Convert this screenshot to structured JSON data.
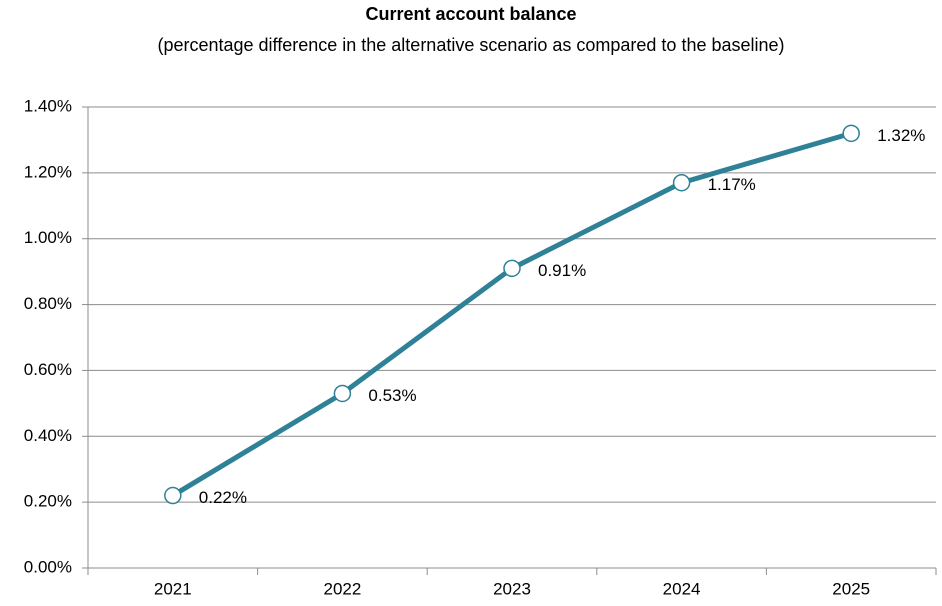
{
  "chart_data": {
    "type": "line",
    "title": "Current account balance",
    "subtitle": "(percentage difference in the alternative scenario as compared to the baseline)",
    "categories": [
      "2021",
      "2022",
      "2023",
      "2024",
      "2025"
    ],
    "series": [
      {
        "name": "Current account balance",
        "color": "#2e8196",
        "values": [
          0.22,
          0.53,
          0.91,
          1.17,
          1.32
        ],
        "value_labels": [
          "0.22%",
          "0.53%",
          "0.91%",
          "1.17%",
          "1.32%"
        ]
      }
    ],
    "ylim": [
      0,
      1.4
    ],
    "yticks": [
      {
        "value": 0,
        "label": "0.00%"
      },
      {
        "value": 0.2,
        "label": "0.20%"
      },
      {
        "value": 0.4,
        "label": "0.40%"
      },
      {
        "value": 0.6,
        "label": "0.60%"
      },
      {
        "value": 0.8,
        "label": "0.80%"
      },
      {
        "value": 1.0,
        "label": "1.00%"
      },
      {
        "value": 1.2,
        "label": "1.20%"
      },
      {
        "value": 1.4,
        "label": "1.40%"
      }
    ],
    "grid": true
  }
}
